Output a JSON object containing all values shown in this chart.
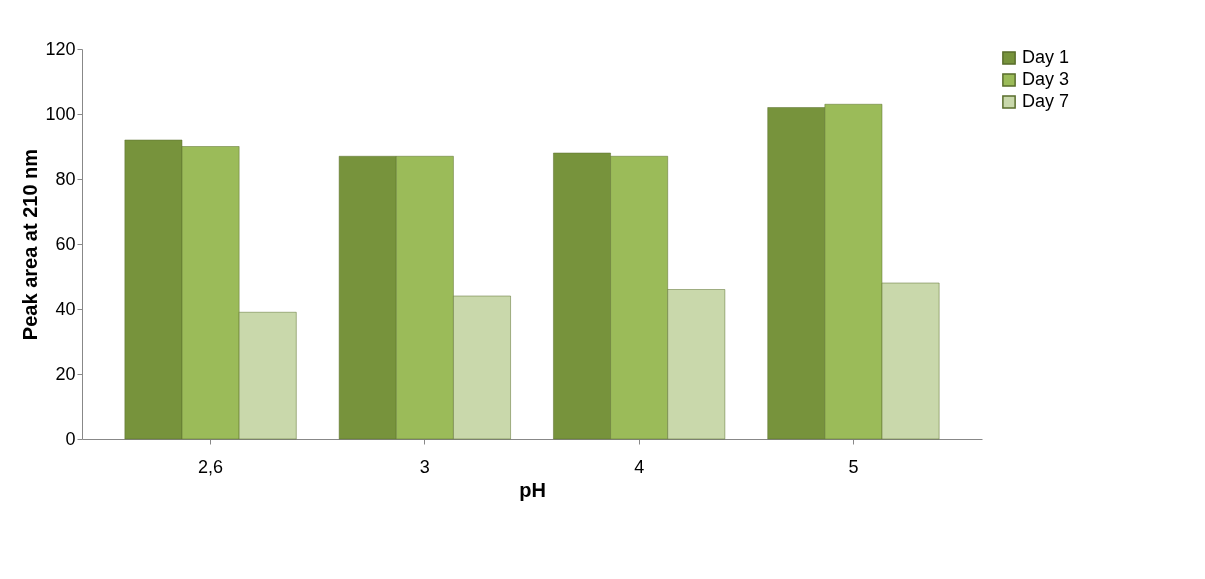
{
  "chart_data": {
    "type": "bar",
    "xlabel": "pH",
    "ylabel": "Peak area at 210 nm",
    "categories": [
      "2,6",
      "3",
      "4",
      "5"
    ],
    "series": [
      {
        "name": "Day 1",
        "color": "#77933c",
        "values": [
          92,
          87,
          88,
          102
        ]
      },
      {
        "name": "Day 3",
        "color": "#9bbb59",
        "values": [
          90,
          87,
          87,
          103
        ]
      },
      {
        "name": "Day 7",
        "color": "#c9d8ab",
        "values": [
          39,
          44,
          46,
          48
        ]
      }
    ],
    "ylim": [
      0,
      120
    ],
    "yticks": [
      0,
      20,
      40,
      60,
      80,
      100,
      120
    ],
    "grid": false,
    "legend": "right"
  }
}
